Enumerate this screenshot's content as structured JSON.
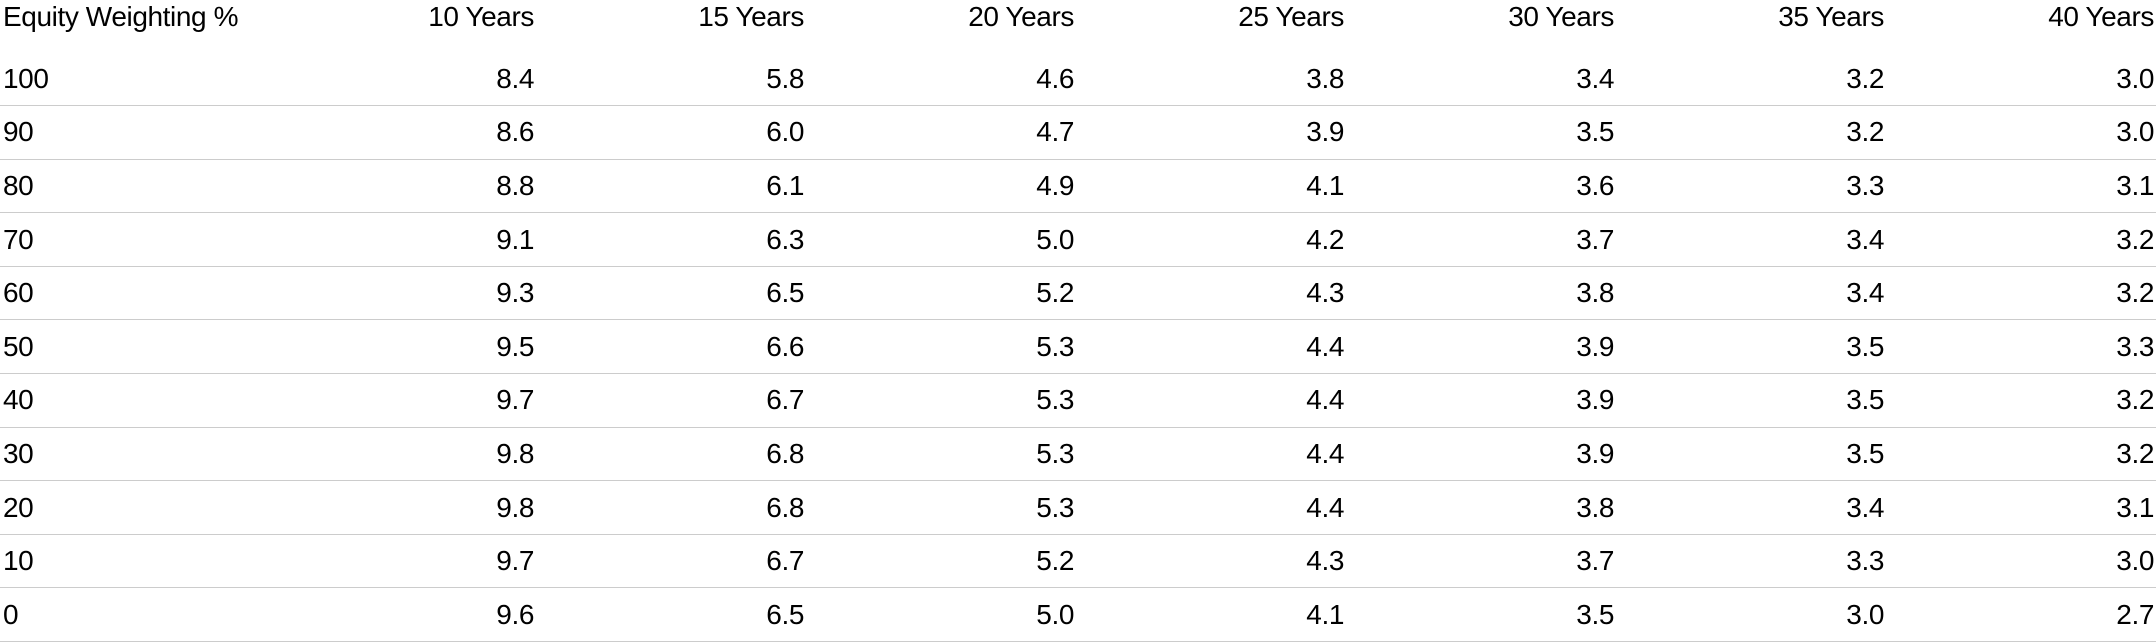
{
  "colors": {
    "background": "#ffffff",
    "text": "#000000",
    "row_divider": "#cccccc"
  },
  "chart_data": {
    "type": "table",
    "columns": [
      "Equity Weighting %",
      "10 Years",
      "15 Years",
      "20 Years",
      "25 Years",
      "30 Years",
      "35 Years",
      "40 Years"
    ],
    "rows": [
      {
        "label": "100",
        "values": [
          "8.4",
          "5.8",
          "4.6",
          "3.8",
          "3.4",
          "3.2",
          "3.0"
        ]
      },
      {
        "label": "90",
        "values": [
          "8.6",
          "6.0",
          "4.7",
          "3.9",
          "3.5",
          "3.2",
          "3.0"
        ]
      },
      {
        "label": "80",
        "values": [
          "8.8",
          "6.1",
          "4.9",
          "4.1",
          "3.6",
          "3.3",
          "3.1"
        ]
      },
      {
        "label": "70",
        "values": [
          "9.1",
          "6.3",
          "5.0",
          "4.2",
          "3.7",
          "3.4",
          "3.2"
        ]
      },
      {
        "label": "60",
        "values": [
          "9.3",
          "6.5",
          "5.2",
          "4.3",
          "3.8",
          "3.4",
          "3.2"
        ]
      },
      {
        "label": "50",
        "values": [
          "9.5",
          "6.6",
          "5.3",
          "4.4",
          "3.9",
          "3.5",
          "3.3"
        ]
      },
      {
        "label": "40",
        "values": [
          "9.7",
          "6.7",
          "5.3",
          "4.4",
          "3.9",
          "3.5",
          "3.2"
        ]
      },
      {
        "label": "30",
        "values": [
          "9.8",
          "6.8",
          "5.3",
          "4.4",
          "3.9",
          "3.5",
          "3.2"
        ]
      },
      {
        "label": "20",
        "values": [
          "9.8",
          "6.8",
          "5.3",
          "4.4",
          "3.8",
          "3.4",
          "3.1"
        ]
      },
      {
        "label": "10",
        "values": [
          "9.7",
          "6.7",
          "5.2",
          "4.3",
          "3.7",
          "3.3",
          "3.0"
        ]
      },
      {
        "label": "0",
        "values": [
          "9.6",
          "6.5",
          "5.0",
          "4.1",
          "3.5",
          "3.0",
          "2.7"
        ]
      }
    ]
  }
}
